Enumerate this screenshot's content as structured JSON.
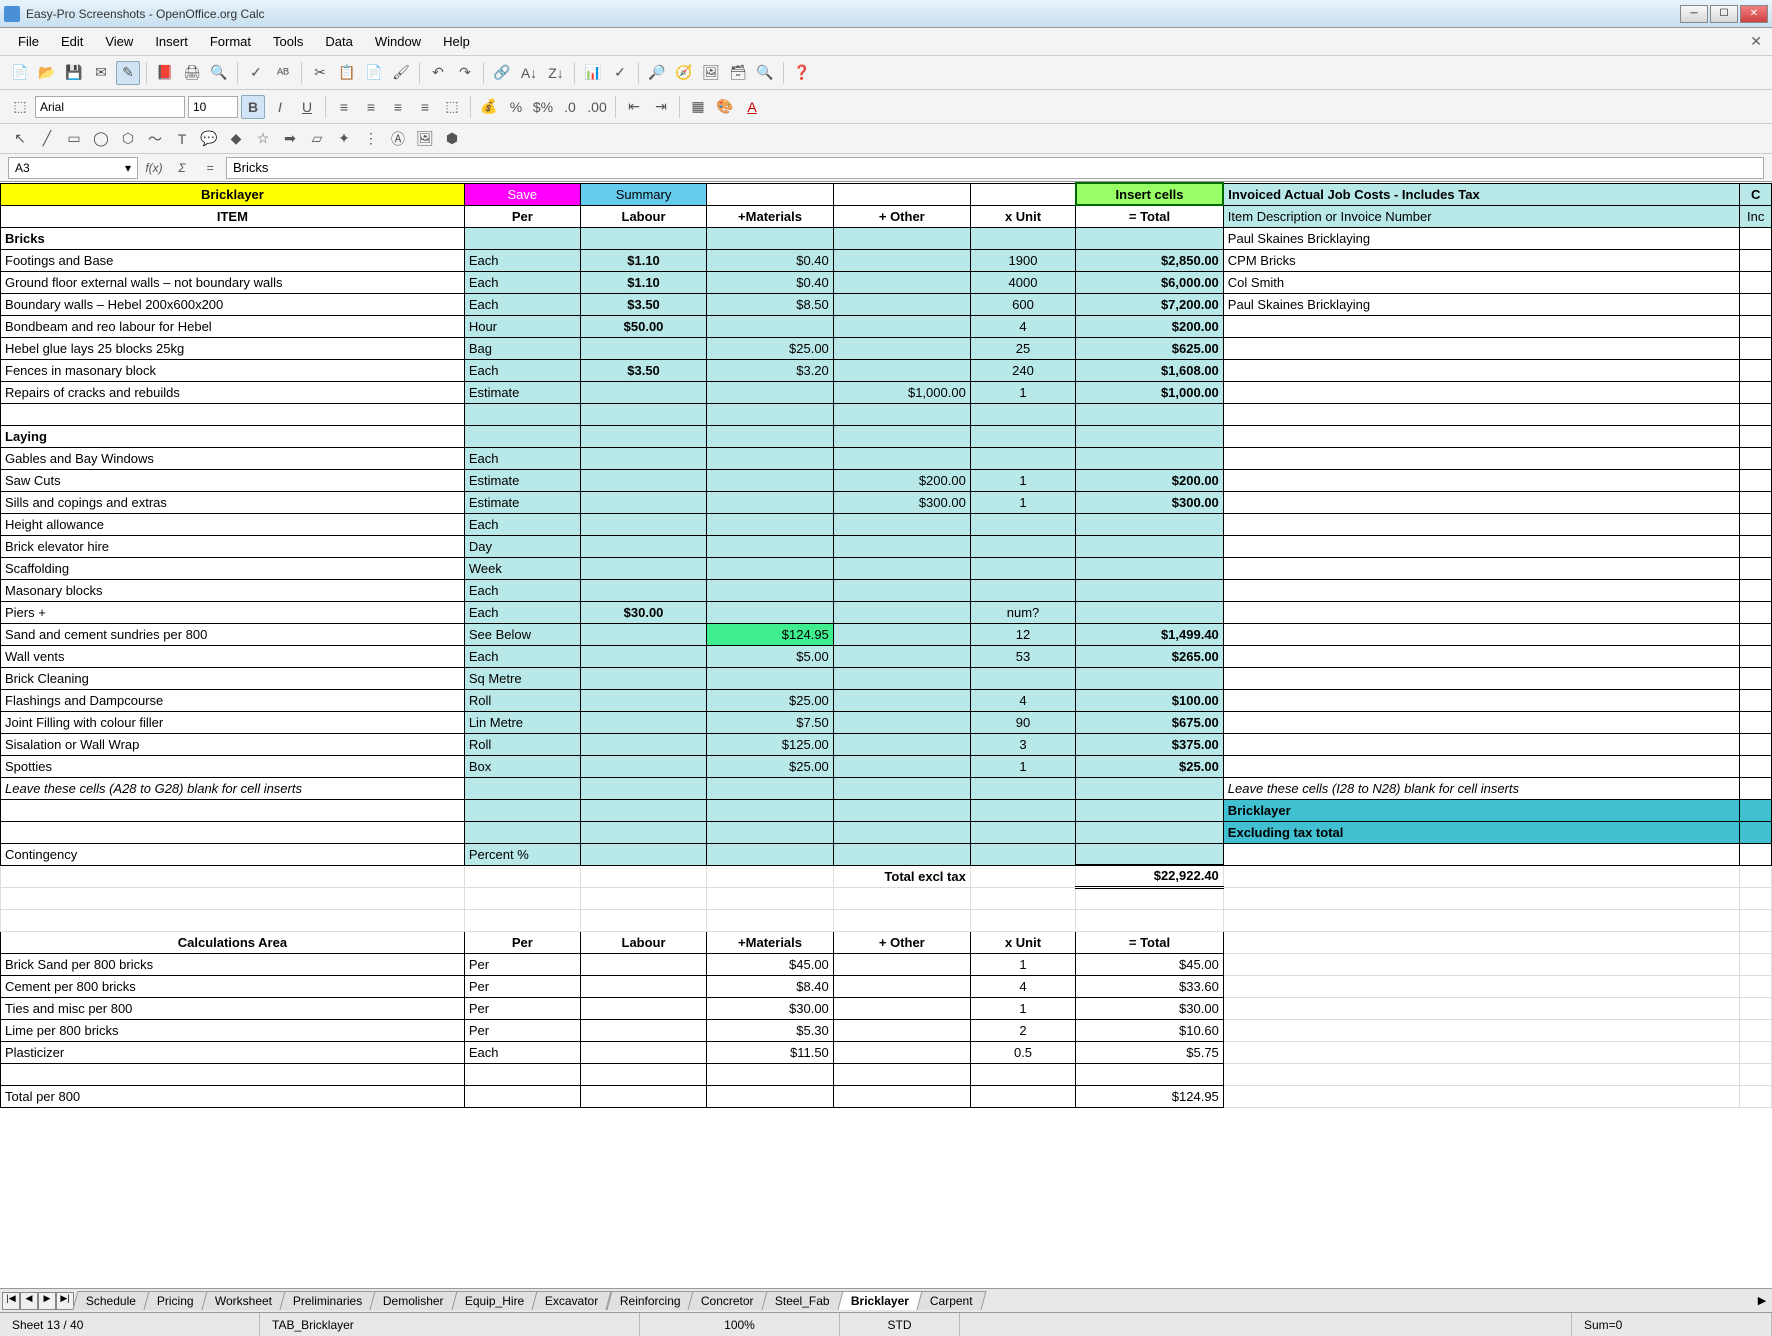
{
  "window": {
    "title": "Easy-Pro Screenshots - OpenOffice.org Calc"
  },
  "menus": [
    "File",
    "Edit",
    "View",
    "Insert",
    "Format",
    "Tools",
    "Data",
    "Window",
    "Help"
  ],
  "font": {
    "name": "Arial",
    "size": "10"
  },
  "formula": {
    "ref": "A3",
    "fx": "f(x)",
    "sigma": "Σ",
    "eq": "=",
    "value": "Bricks"
  },
  "buttons": {
    "bricklayer": "Bricklayer",
    "save": "Save",
    "summary": "Summary",
    "insert_cells": "Insert cells"
  },
  "headers": {
    "item": "ITEM",
    "per": "Per",
    "labour": "Labour",
    "materials": "+Materials",
    "other": "+ Other",
    "xunit": "x Unit",
    "total": "= Total"
  },
  "invoice": {
    "title": "Invoiced Actual Job Costs - Includes Tax",
    "sub": "Item Description or Invoice Number",
    "col_c": "C",
    "col_inc": "Inc"
  },
  "invoice_rows": [
    "Paul Skaines Bricklaying",
    "CPM Bricks",
    "Col Smith",
    "Paul Skaines Bricklaying",
    "",
    "",
    "",
    "",
    "",
    "",
    "",
    "",
    "",
    "",
    "",
    "",
    "",
    "",
    "",
    "",
    "",
    "",
    "",
    ""
  ],
  "invoice_note": "Leave these cells (I28 to N28) blank for cell inserts",
  "invoice_totals": {
    "r1": "Bricklayer",
    "r2": "Excluding tax total"
  },
  "sections": {
    "bricks": "Bricks",
    "laying": "Laying",
    "calc": "Calculations Area"
  },
  "rows_bricks": [
    {
      "item": "Footings and Base",
      "per": "Each",
      "labour": "$1.10",
      "mat": "$0.40",
      "other": "",
      "unit": "1900",
      "total": "$2,850.00"
    },
    {
      "item": "Ground floor external walls – not boundary walls",
      "per": "Each",
      "labour": "$1.10",
      "mat": "$0.40",
      "other": "",
      "unit": "4000",
      "total": "$6,000.00"
    },
    {
      "item": "Boundary walls  – Hebel 200x600x200",
      "per": "Each",
      "labour": "$3.50",
      "mat": "$8.50",
      "other": "",
      "unit": "600",
      "total": "$7,200.00"
    },
    {
      "item": "Bondbeam and reo labour for Hebel",
      "per": "Hour",
      "labour": "$50.00",
      "mat": "",
      "other": "",
      "unit": "4",
      "total": "$200.00"
    },
    {
      "item": "Hebel glue  lays 25 blocks 25kg",
      "per": "Bag",
      "labour": "",
      "mat": "$25.00",
      "other": "",
      "unit": "25",
      "total": "$625.00"
    },
    {
      "item": "Fences in masonary block",
      "per": "Each",
      "labour": "$3.50",
      "mat": "$3.20",
      "other": "",
      "unit": "240",
      "total": "$1,608.00"
    },
    {
      "item": "Repairs of cracks and rebuilds",
      "per": "Estimate",
      "labour": "",
      "mat": "",
      "other": "$1,000.00",
      "unit": "1",
      "total": "$1,000.00"
    }
  ],
  "rows_laying": [
    {
      "item": "Gables and Bay Windows",
      "per": "Each",
      "labour": "",
      "mat": "",
      "other": "",
      "unit": "",
      "total": ""
    },
    {
      "item": "Saw Cuts",
      "per": "Estimate",
      "labour": "",
      "mat": "",
      "other": "$200.00",
      "unit": "1",
      "total": "$200.00"
    },
    {
      "item": "Sills and copings and extras",
      "per": "Estimate",
      "labour": "",
      "mat": "",
      "other": "$300.00",
      "unit": "1",
      "total": "$300.00"
    },
    {
      "item": "Height allowance",
      "per": "Each",
      "labour": "",
      "mat": "",
      "other": "",
      "unit": "",
      "total": ""
    },
    {
      "item": "Brick elevator hire",
      "per": "Day",
      "labour": "",
      "mat": "",
      "other": "",
      "unit": "",
      "total": ""
    },
    {
      "item": "Scaffolding",
      "per": "Week",
      "labour": "",
      "mat": "",
      "other": "",
      "unit": "",
      "total": ""
    },
    {
      "item": "Masonary blocks",
      "per": "Each",
      "labour": "",
      "mat": "",
      "other": "",
      "unit": "",
      "total": ""
    },
    {
      "item": "Piers +",
      "per": "Each",
      "labour": "$30.00",
      "mat": "",
      "other": "",
      "unit": "num?",
      "total": ""
    },
    {
      "item": "Sand and cement sundries per 800",
      "per": "See Below",
      "labour": "",
      "mat": "$124.95",
      "other": "",
      "unit": "12",
      "total": "$1,499.40",
      "hl": true
    },
    {
      "item": "Wall vents",
      "per": "Each",
      "labour": "",
      "mat": "$5.00",
      "other": "",
      "unit": "53",
      "total": "$265.00"
    },
    {
      "item": "Brick Cleaning",
      "per": "Sq Metre",
      "labour": "",
      "mat": "",
      "other": "",
      "unit": "",
      "total": ""
    },
    {
      "item": "Flashings and Dampcourse",
      "per": "Roll",
      "labour": "",
      "mat": "$25.00",
      "other": "",
      "unit": "4",
      "total": "$100.00"
    },
    {
      "item": "Joint Filling with colour filler",
      "per": "Lin Metre",
      "labour": "",
      "mat": "$7.50",
      "other": "",
      "unit": "90",
      "total": "$675.00"
    },
    {
      "item": "Sisalation or Wall Wrap",
      "per": "Roll",
      "labour": "",
      "mat": "$125.00",
      "other": "",
      "unit": "3",
      "total": "$375.00"
    },
    {
      "item": "Spotties",
      "per": "Box",
      "labour": "",
      "mat": "$25.00",
      "other": "",
      "unit": "1",
      "total": "$25.00"
    }
  ],
  "note_row": "Leave these cells (A28 to G28) blank for cell inserts",
  "contingency": {
    "label": "Contingency",
    "per": "Percent %"
  },
  "total_excl": {
    "label": "Total excl tax",
    "value": "$22,922.40"
  },
  "rows_calc": [
    {
      "item": "Brick Sand per 800 bricks",
      "per": "Per",
      "labour": "",
      "mat": "$45.00",
      "other": "",
      "unit": "1",
      "total": "$45.00"
    },
    {
      "item": "Cement per 800 bricks",
      "per": "Per",
      "labour": "",
      "mat": "$8.40",
      "other": "",
      "unit": "4",
      "total": "$33.60"
    },
    {
      "item": "Ties and misc per 800",
      "per": "Per",
      "labour": "",
      "mat": "$30.00",
      "other": "",
      "unit": "1",
      "total": "$30.00"
    },
    {
      "item": "Lime per 800 bricks",
      "per": "Per",
      "labour": "",
      "mat": "$5.30",
      "other": "",
      "unit": "2",
      "total": "$10.60"
    },
    {
      "item": "Plasticizer",
      "per": "Each",
      "labour": "",
      "mat": "$11.50",
      "other": "",
      "unit": "0.5",
      "total": "$5.75"
    }
  ],
  "calc_footer": {
    "item": "Total per 800",
    "total": "$124.95"
  },
  "tabs": [
    "Schedule",
    "Pricing",
    "Worksheet",
    "Preliminaries",
    "Demolisher",
    "Equip_Hire",
    "Excavator",
    "Reinforcing",
    "Concretor",
    "Steel_Fab",
    "Bricklayer",
    "Carpent"
  ],
  "active_tab": "Bricklayer",
  "status": {
    "sheet": "Sheet 13 / 40",
    "tab": "TAB_Bricklayer",
    "zoom": "100%",
    "mode": "STD",
    "sum": "Sum=0"
  },
  "colors": {
    "yellow": "#ffff00",
    "pink": "#ff00ff",
    "cyan": "#66ccee",
    "green": "#99ff66",
    "teal": "#b8e8e8",
    "bright_teal": "#40c0d0",
    "green_hl": "#40ee90"
  },
  "col_widths": {
    "item": 440,
    "per": 110,
    "labour": 120,
    "mat": 120,
    "other": 130,
    "unit": 100,
    "total": 140,
    "invoice": 490
  }
}
